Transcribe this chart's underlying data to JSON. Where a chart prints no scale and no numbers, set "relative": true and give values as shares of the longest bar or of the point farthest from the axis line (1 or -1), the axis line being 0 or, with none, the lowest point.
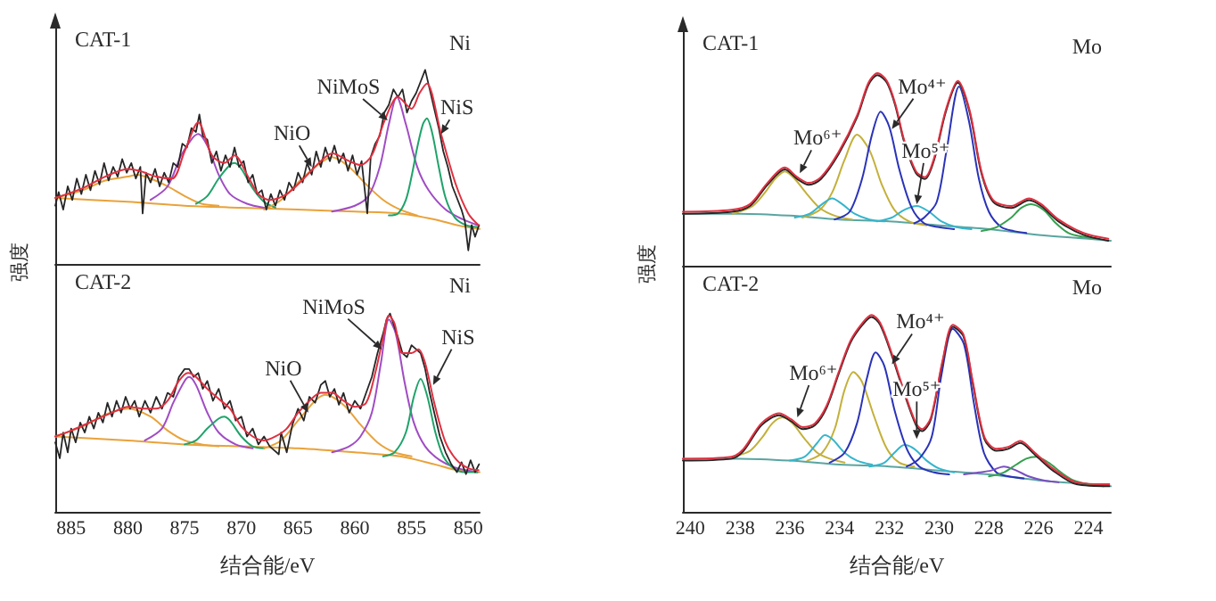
{
  "chart_data": [
    {
      "type": "line",
      "title": "CAT-1",
      "subtitle": "Ni",
      "relative": true,
      "tick_labels": false,
      "xlim": [
        886.4,
        849
      ],
      "annotations": [
        {
          "text": "NiO",
          "x": 863.8,
          "y": 0.5
        },
        {
          "text": "NiMoS",
          "x": 857.1,
          "y": 0.74
        },
        {
          "text": "NiS",
          "x": 852.4,
          "y": 0.67
        }
      ],
      "series": [
        {
          "color": "#e9a23b",
          "x": [
            886.4,
            880,
            875,
            870,
            865,
            860,
            856,
            853,
            851,
            849
          ],
          "values": [
            0.34,
            0.32,
            0.3,
            0.29,
            0.28,
            0.27,
            0.26,
            0.23,
            0.2,
            0.18
          ]
        },
        {
          "color": "#e9a23b",
          "x": [
            886.4,
            884,
            882,
            880,
            879.2,
            878,
            876.5,
            875,
            873.5,
            872
          ],
          "values": [
            0.34,
            0.38,
            0.43,
            0.45,
            0.46,
            0.44,
            0.4,
            0.35,
            0.31,
            0.3
          ]
        },
        {
          "color": "#a04cc4",
          "x": [
            878,
            876.5,
            875.3,
            874.3,
            873.8,
            873,
            872,
            871,
            869.5,
            868
          ],
          "values": [
            0.33,
            0.4,
            0.56,
            0.65,
            0.67,
            0.61,
            0.46,
            0.36,
            0.31,
            0.29
          ]
        },
        {
          "color": "#1fa36a",
          "x": [
            874,
            873,
            872,
            871,
            870.6,
            870,
            869,
            868,
            867
          ],
          "values": [
            0.31,
            0.35,
            0.44,
            0.51,
            0.52,
            0.49,
            0.39,
            0.32,
            0.29
          ]
        },
        {
          "color": "#e9a23b",
          "x": [
            868,
            866.5,
            865,
            863.5,
            862,
            860.5,
            859,
            857.5,
            856,
            854.5
          ],
          "values": [
            0.28,
            0.33,
            0.42,
            0.5,
            0.55,
            0.5,
            0.41,
            0.33,
            0.28,
            0.25
          ]
        },
        {
          "color": "#a04cc4",
          "x": [
            862,
            860,
            858.8,
            857.8,
            857,
            856.3,
            855.5,
            854.5,
            853.5,
            852,
            850.5,
            849.2
          ],
          "values": [
            0.27,
            0.3,
            0.35,
            0.5,
            0.72,
            0.86,
            0.72,
            0.5,
            0.38,
            0.28,
            0.23,
            0.2
          ]
        },
        {
          "color": "#1fa36a",
          "x": [
            857,
            856.2,
            855.5,
            855,
            854.5,
            854,
            853.65,
            853.2,
            852.6,
            852,
            851.2,
            850.2,
            849.2
          ],
          "values": [
            0.25,
            0.26,
            0.33,
            0.45,
            0.6,
            0.72,
            0.75,
            0.68,
            0.5,
            0.34,
            0.24,
            0.2,
            0.19
          ]
        },
        {
          "color": "#262626",
          "x": [
            886.4,
            886.1,
            885.7,
            885.3,
            884.9,
            884.5,
            884.1,
            883.7,
            883.3,
            882.9,
            882.5,
            882.1,
            881.7,
            881.3,
            880.9,
            880.5,
            880.1,
            879.7,
            879.3,
            878.9,
            878.7,
            878.4,
            878,
            877.6,
            877.2,
            876.8,
            876.4,
            876,
            875.6,
            875.2,
            874.8,
            874.4,
            874,
            873.7,
            873.4,
            873,
            872.6,
            872.2,
            871.8,
            871.4,
            871,
            870.6,
            870.2,
            869.8,
            869.4,
            869,
            868.6,
            868.2,
            867.8,
            867.4,
            867,
            866.6,
            866.2,
            865.8,
            865.4,
            865,
            864.6,
            864.2,
            863.8,
            863.4,
            863,
            862.6,
            862.2,
            861.8,
            861.4,
            861,
            860.6,
            860.2,
            859.8,
            859.4,
            858.9,
            858.6,
            858.2,
            857.8,
            857.4,
            857,
            856.6,
            856.2,
            855.8,
            855.4,
            855,
            854.6,
            854.2,
            853.8,
            853.4,
            853,
            852.6,
            852.2,
            851.8,
            851.4,
            851,
            850.6,
            850.3,
            850,
            849.7,
            849.4,
            849.05
          ],
          "values": [
            0.3,
            0.37,
            0.28,
            0.4,
            0.33,
            0.44,
            0.36,
            0.46,
            0.38,
            0.48,
            0.41,
            0.52,
            0.43,
            0.5,
            0.45,
            0.54,
            0.47,
            0.52,
            0.44,
            0.5,
            0.26,
            0.47,
            0.42,
            0.49,
            0.4,
            0.47,
            0.42,
            0.52,
            0.5,
            0.62,
            0.6,
            0.7,
            0.68,
            0.77,
            0.66,
            0.64,
            0.52,
            0.58,
            0.48,
            0.56,
            0.5,
            0.6,
            0.5,
            0.53,
            0.42,
            0.46,
            0.36,
            0.38,
            0.28,
            0.36,
            0.3,
            0.38,
            0.33,
            0.42,
            0.38,
            0.47,
            0.42,
            0.52,
            0.46,
            0.58,
            0.5,
            0.6,
            0.53,
            0.61,
            0.52,
            0.57,
            0.48,
            0.56,
            0.46,
            0.53,
            0.26,
            0.55,
            0.62,
            0.66,
            0.78,
            0.82,
            0.9,
            0.86,
            0.9,
            0.78,
            0.84,
            0.88,
            0.94,
            1.0,
            0.9,
            0.8,
            0.7,
            0.58,
            0.5,
            0.4,
            0.34,
            0.28,
            0.22,
            0.07,
            0.2,
            0.14,
            0.2
          ]
        },
        {
          "color": "#e03040",
          "x": [
            886.4,
            884,
            882,
            880,
            879,
            877.5,
            876.1,
            875,
            873.8,
            872.6,
            871.5,
            870.6,
            869.5,
            868.5,
            867.5,
            866,
            864.5,
            863,
            862,
            860.5,
            859.5,
            858.5,
            857.3,
            856.2,
            855,
            854.3,
            853.65,
            852.4,
            851.1,
            850,
            849.1
          ],
          "values": [
            0.34,
            0.39,
            0.45,
            0.49,
            0.48,
            0.45,
            0.44,
            0.58,
            0.73,
            0.56,
            0.52,
            0.56,
            0.46,
            0.36,
            0.33,
            0.36,
            0.44,
            0.53,
            0.57,
            0.53,
            0.51,
            0.56,
            0.75,
            0.86,
            0.8,
            0.88,
            0.93,
            0.67,
            0.41,
            0.26,
            0.2
          ]
        }
      ]
    },
    {
      "type": "line",
      "title": "CAT-2",
      "subtitle": "Ni",
      "xlabel": "结合能/eV",
      "ylabel": "强度",
      "relative": true,
      "tick_labels": "x",
      "xlim": [
        886.4,
        849
      ],
      "xticks": [
        885,
        880,
        875,
        870,
        865,
        860,
        855,
        850
      ],
      "annotations": [
        {
          "text": "NiO",
          "x": 864.1,
          "y": 0.5
        },
        {
          "text": "NiMoS",
          "x": 857.6,
          "y": 0.82
        },
        {
          "text": "NiS",
          "x": 853.1,
          "y": 0.64
        }
      ],
      "series": [
        {
          "color": "#e9a23b",
          "x": [
            886.4,
            880,
            875,
            870,
            865,
            860,
            856,
            853,
            851,
            849
          ],
          "values": [
            0.38,
            0.36,
            0.34,
            0.33,
            0.32,
            0.3,
            0.28,
            0.24,
            0.21,
            0.2
          ]
        },
        {
          "color": "#e9a23b",
          "x": [
            886.4,
            884,
            882,
            880,
            878,
            876.5,
            875,
            873.5,
            872
          ],
          "values": [
            0.38,
            0.43,
            0.49,
            0.52,
            0.48,
            0.41,
            0.36,
            0.34,
            0.33
          ]
        },
        {
          "color": "#a04cc4",
          "x": [
            878.5,
            877,
            876,
            875,
            874.6,
            874,
            873,
            872,
            870.5,
            869
          ],
          "values": [
            0.36,
            0.42,
            0.55,
            0.66,
            0.68,
            0.64,
            0.5,
            0.4,
            0.34,
            0.32
          ]
        },
        {
          "color": "#1fa36a",
          "x": [
            875,
            874,
            873,
            872,
            871.5,
            871,
            870,
            869,
            868
          ],
          "values": [
            0.34,
            0.36,
            0.42,
            0.47,
            0.48,
            0.46,
            0.38,
            0.33,
            0.32
          ]
        },
        {
          "color": "#e9a23b",
          "x": [
            868,
            866.5,
            865,
            863.5,
            862.6,
            861,
            859.5,
            858,
            856.5,
            855
          ],
          "values": [
            0.32,
            0.36,
            0.46,
            0.56,
            0.59,
            0.54,
            0.44,
            0.35,
            0.3,
            0.28
          ]
        },
        {
          "color": "#a04cc4",
          "x": [
            862,
            860.5,
            859.5,
            858.5,
            857.7,
            857,
            856.4,
            855.6,
            854.8,
            853.8,
            852.5,
            851,
            849.2
          ],
          "values": [
            0.3,
            0.33,
            0.38,
            0.5,
            0.75,
            0.97,
            0.9,
            0.65,
            0.45,
            0.33,
            0.26,
            0.22,
            0.2
          ]
        },
        {
          "color": "#1fa36a",
          "x": [
            857.5,
            856.5,
            855.5,
            854.8,
            854.2,
            853.6,
            852.9,
            852.2,
            851.3,
            850.3,
            849.2
          ],
          "values": [
            0.28,
            0.3,
            0.4,
            0.58,
            0.67,
            0.58,
            0.4,
            0.28,
            0.22,
            0.2,
            0.2
          ]
        },
        {
          "color": "#262626",
          "x": [
            886.4,
            886,
            885.7,
            885.3,
            885,
            884.6,
            884.2,
            883.8,
            883.4,
            883,
            882.6,
            882.2,
            881.8,
            881.4,
            881,
            880.6,
            880.2,
            879.8,
            879.4,
            879,
            878.5,
            878,
            877.5,
            877,
            876.5,
            876,
            875.5,
            875,
            874.6,
            874.2,
            873.8,
            873.4,
            873,
            872.5,
            872,
            871.5,
            871,
            870.5,
            870,
            869.5,
            869,
            868.5,
            868,
            867.5,
            866.7,
            866.5,
            866,
            865.5,
            865,
            864.5,
            864,
            863.5,
            863,
            862.6,
            862.2,
            861.8,
            861.4,
            861,
            860.5,
            860,
            859.5,
            859,
            858.5,
            858,
            857.5,
            857.2,
            856.9,
            856.6,
            856.2,
            855.8,
            855.4,
            855,
            854.6,
            854.2,
            853.8,
            853.4,
            853,
            852.5,
            852,
            851.5,
            851,
            850.6,
            850.2,
            849.8,
            849.4,
            849.05
          ],
          "values": [
            0.35,
            0.27,
            0.4,
            0.3,
            0.42,
            0.35,
            0.45,
            0.4,
            0.48,
            0.42,
            0.5,
            0.45,
            0.55,
            0.48,
            0.56,
            0.5,
            0.58,
            0.52,
            0.56,
            0.48,
            0.56,
            0.5,
            0.58,
            0.52,
            0.6,
            0.58,
            0.68,
            0.72,
            0.72,
            0.68,
            0.7,
            0.62,
            0.66,
            0.56,
            0.62,
            0.52,
            0.56,
            0.46,
            0.48,
            0.38,
            0.42,
            0.34,
            0.38,
            0.33,
            0.29,
            0.4,
            0.3,
            0.44,
            0.52,
            0.46,
            0.58,
            0.55,
            0.64,
            0.66,
            0.58,
            0.62,
            0.54,
            0.6,
            0.5,
            0.56,
            0.52,
            0.6,
            0.68,
            0.8,
            0.9,
            0.97,
            1.0,
            0.95,
            0.88,
            0.8,
            0.78,
            0.84,
            0.82,
            0.8,
            0.72,
            0.6,
            0.5,
            0.38,
            0.3,
            0.24,
            0.2,
            0.25,
            0.19,
            0.26,
            0.2,
            0.24
          ]
        },
        {
          "color": "#e03040",
          "x": [
            886.4,
            885,
            883,
            881,
            880,
            878.5,
            877.5,
            876.5,
            875.5,
            874.7,
            874,
            873,
            872,
            871,
            870,
            869,
            868,
            867,
            866,
            865,
            864,
            863,
            862,
            861,
            860,
            859,
            858.2,
            857.5,
            857,
            856.5,
            855.8,
            855,
            854.4,
            853.8,
            853,
            852,
            851,
            850,
            849.1
          ],
          "values": [
            0.38,
            0.41,
            0.46,
            0.51,
            0.53,
            0.52,
            0.52,
            0.56,
            0.66,
            0.7,
            0.68,
            0.62,
            0.57,
            0.52,
            0.43,
            0.38,
            0.36,
            0.38,
            0.42,
            0.5,
            0.56,
            0.6,
            0.6,
            0.56,
            0.53,
            0.55,
            0.7,
            0.88,
            0.99,
            0.95,
            0.8,
            0.8,
            0.82,
            0.75,
            0.55,
            0.35,
            0.26,
            0.22,
            0.21
          ]
        }
      ]
    },
    {
      "type": "line",
      "title": "CAT-1",
      "subtitle": "Mo",
      "relative": true,
      "tick_labels": false,
      "xlim": [
        240.3,
        223.1
      ],
      "annotations": [
        {
          "text": "Mo⁶⁺",
          "x": 235.6,
          "y": 0.48
        },
        {
          "text": "Mo⁴⁺",
          "x": 231.9,
          "y": 0.71
        },
        {
          "text": "Mo⁵⁺",
          "x": 230.9,
          "y": 0.32
        }
      ],
      "series": [
        {
          "color": "#5aa5a0",
          "x": [
            240.3,
            238,
            236,
            234,
            232,
            230,
            228,
            226,
            224,
            223.1
          ],
          "values": [
            0.27,
            0.27,
            0.26,
            0.24,
            0.23,
            0.21,
            0.19,
            0.16,
            0.14,
            0.13
          ]
        },
        {
          "color": "#c4b03a",
          "x": [
            238.3,
            237.5,
            237,
            236.6,
            236.2,
            235.8,
            235.3,
            234.8,
            234.2,
            233.5
          ],
          "values": [
            0.27,
            0.31,
            0.38,
            0.45,
            0.49,
            0.45,
            0.37,
            0.3,
            0.26,
            0.24
          ]
        },
        {
          "color": "#c4b03a",
          "x": [
            235.5,
            234.8,
            234.3,
            233.8,
            233.3,
            232.8,
            232.3,
            231.8,
            231.2,
            230.5
          ],
          "values": [
            0.25,
            0.29,
            0.38,
            0.55,
            0.68,
            0.6,
            0.42,
            0.29,
            0.23,
            0.21
          ]
        },
        {
          "color": "#35b5cc",
          "x": [
            235.8,
            235.2,
            234.7,
            234.3,
            233.9,
            233.4,
            232.8,
            232.2
          ],
          "values": [
            0.25,
            0.27,
            0.32,
            0.35,
            0.32,
            0.27,
            0.24,
            0.23
          ]
        },
        {
          "color": "#35b5cc",
          "x": [
            232.5,
            231.9,
            231.4,
            230.9,
            230.4,
            229.9,
            229.3,
            228.7
          ],
          "values": [
            0.23,
            0.25,
            0.29,
            0.31,
            0.28,
            0.23,
            0.2,
            0.19
          ]
        },
        {
          "color": "#2a33b8",
          "x": [
            234.2,
            233.6,
            233.1,
            232.7,
            232.35,
            232,
            231.6,
            231.1,
            230.6,
            230,
            229.4
          ],
          "values": [
            0.24,
            0.28,
            0.45,
            0.68,
            0.8,
            0.72,
            0.5,
            0.3,
            0.22,
            0.2,
            0.19
          ]
        },
        {
          "color": "#2a33b8",
          "x": [
            231,
            230.6,
            230.1,
            229.7,
            229.2,
            228.8,
            228.4,
            228,
            227.5,
            227,
            226.5
          ],
          "values": [
            0.22,
            0.25,
            0.33,
            0.6,
            0.93,
            0.75,
            0.45,
            0.28,
            0.2,
            0.18,
            0.17
          ]
        },
        {
          "color": "#35a04f",
          "x": [
            228.3,
            227.7,
            227.1,
            226.7,
            226.3,
            225.8,
            225.3,
            224.8,
            224.2,
            223.6
          ],
          "values": [
            0.18,
            0.2,
            0.25,
            0.3,
            0.32,
            0.29,
            0.22,
            0.17,
            0.15,
            0.14
          ]
        },
        {
          "color": "#262626",
          "x": [
            240.3,
            238.34,
            237.6,
            236.9,
            236.2,
            235.7,
            235.24,
            234.75,
            234.04,
            233.3,
            232.84,
            232.48,
            232.1,
            231.76,
            231.4,
            230.93,
            230.57,
            230.2,
            229.73,
            229.25,
            228.78,
            228.3,
            227.82,
            227.1,
            226.38,
            225.9,
            225.2,
            224.2,
            223.2
          ],
          "values": [
            0.27,
            0.28,
            0.31,
            0.42,
            0.5,
            0.45,
            0.42,
            0.45,
            0.58,
            0.77,
            0.94,
            0.99,
            0.95,
            0.83,
            0.64,
            0.48,
            0.45,
            0.55,
            0.8,
            0.95,
            0.8,
            0.48,
            0.33,
            0.3,
            0.34,
            0.31,
            0.23,
            0.16,
            0.13
          ]
        },
        {
          "color": "#e03040",
          "x": [
            240.3,
            238.34,
            237.6,
            236.9,
            236.2,
            235.7,
            235.24,
            234.75,
            234.04,
            233.3,
            232.84,
            232.48,
            232.1,
            231.76,
            231.4,
            230.93,
            230.57,
            230.2,
            229.73,
            229.25,
            228.78,
            228.3,
            227.82,
            227.1,
            226.38,
            225.9,
            225.2,
            224.2,
            223.2
          ],
          "values": [
            0.28,
            0.29,
            0.32,
            0.43,
            0.51,
            0.46,
            0.43,
            0.46,
            0.59,
            0.78,
            0.95,
            1.0,
            0.96,
            0.84,
            0.65,
            0.49,
            0.46,
            0.56,
            0.81,
            0.96,
            0.81,
            0.49,
            0.34,
            0.31,
            0.35,
            0.32,
            0.24,
            0.17,
            0.14
          ]
        }
      ]
    },
    {
      "type": "line",
      "title": "CAT-2",
      "subtitle": "Mo",
      "xlabel": "结合能/eV",
      "ylabel": "强度",
      "relative": true,
      "tick_labels": "x",
      "xlim": [
        240.3,
        223.1
      ],
      "xticks": [
        240,
        238,
        236,
        234,
        232,
        230,
        228,
        226,
        224
      ],
      "annotations": [
        {
          "text": "Mo⁶⁺",
          "x": 235.7,
          "y": 0.48
        },
        {
          "text": "Mo⁴⁺",
          "x": 231.9,
          "y": 0.75
        },
        {
          "text": "Mo⁵⁺",
          "x": 230.9,
          "y": 0.37
        }
      ],
      "series": [
        {
          "color": "#5aa5a0",
          "x": [
            240.3,
            238,
            236,
            234,
            232,
            230,
            228,
            226,
            224,
            223.1
          ],
          "values": [
            0.27,
            0.27,
            0.26,
            0.24,
            0.23,
            0.21,
            0.19,
            0.16,
            0.14,
            0.13
          ]
        },
        {
          "color": "#c4b03a",
          "x": [
            238.3,
            237.6,
            237.1,
            236.7,
            236.3,
            235.9,
            235.4,
            234.9,
            234.4,
            233.8
          ],
          "values": [
            0.28,
            0.31,
            0.38,
            0.45,
            0.48,
            0.45,
            0.37,
            0.3,
            0.27,
            0.25
          ]
        },
        {
          "color": "#c4b03a",
          "x": [
            235.3,
            234.7,
            234.2,
            233.8,
            233.45,
            233.1,
            232.6,
            232.1,
            231.6,
            231
          ],
          "values": [
            0.26,
            0.3,
            0.42,
            0.62,
            0.71,
            0.66,
            0.48,
            0.32,
            0.25,
            0.23
          ]
        },
        {
          "color": "#35b5cc",
          "x": [
            236,
            235.4,
            234.9,
            234.6,
            234.3,
            233.8,
            233.3,
            232.7
          ],
          "values": [
            0.26,
            0.28,
            0.35,
            0.39,
            0.37,
            0.3,
            0.26,
            0.24
          ]
        },
        {
          "color": "#35b5cc",
          "x": [
            232.8,
            232.2,
            231.8,
            231.4,
            231,
            230.5,
            230,
            229.4
          ],
          "values": [
            0.23,
            0.25,
            0.3,
            0.34,
            0.32,
            0.26,
            0.22,
            0.2
          ]
        },
        {
          "color": "#2a33b8",
          "x": [
            234.4,
            233.8,
            233.3,
            232.9,
            232.55,
            232.2,
            231.8,
            231.3,
            230.8,
            230.2,
            229.6
          ],
          "values": [
            0.25,
            0.3,
            0.45,
            0.68,
            0.81,
            0.74,
            0.52,
            0.32,
            0.23,
            0.2,
            0.19
          ]
        },
        {
          "color": "#2a33b8",
          "x": [
            231.3,
            230.8,
            230.3,
            229.9,
            229.45,
            229,
            228.6,
            228.2,
            227.7,
            227.2,
            226.6
          ],
          "values": [
            0.23,
            0.27,
            0.38,
            0.7,
            0.93,
            0.85,
            0.55,
            0.3,
            0.2,
            0.18,
            0.17
          ]
        },
        {
          "color": "#7a4fc0",
          "x": [
            229,
            228.4,
            227.9,
            227.4,
            226.9,
            226.4,
            225.8,
            225.2
          ],
          "values": [
            0.19,
            0.2,
            0.21,
            0.23,
            0.21,
            0.18,
            0.16,
            0.15
          ]
        },
        {
          "color": "#35a04f",
          "x": [
            228,
            227.4,
            226.9,
            226.5,
            226.1,
            225.6,
            225.1,
            224.6,
            224,
            223.4
          ],
          "values": [
            0.18,
            0.2,
            0.24,
            0.27,
            0.28,
            0.25,
            0.2,
            0.16,
            0.14,
            0.13
          ]
        },
        {
          "color": "#262626",
          "x": [
            240.3,
            238.34,
            237.86,
            237.14,
            236.43,
            235.95,
            235.47,
            234.99,
            234.52,
            234.04,
            233.56,
            233.08,
            232.72,
            232.37,
            231.89,
            231.4,
            230.93,
            230.69,
            230.33,
            229.86,
            229.45,
            229.02,
            228.66,
            228.18,
            227.7,
            227.22,
            226.74,
            226.15,
            225.43,
            224.48,
            223.16
          ],
          "values": [
            0.26,
            0.27,
            0.31,
            0.44,
            0.49,
            0.46,
            0.42,
            0.44,
            0.53,
            0.7,
            0.86,
            0.95,
            0.99,
            0.95,
            0.79,
            0.6,
            0.44,
            0.41,
            0.47,
            0.76,
            0.94,
            0.89,
            0.66,
            0.37,
            0.31,
            0.32,
            0.35,
            0.29,
            0.21,
            0.14,
            0.13
          ]
        },
        {
          "color": "#e03040",
          "x": [
            240.3,
            238.34,
            237.86,
            237.14,
            236.43,
            235.95,
            235.47,
            234.99,
            234.52,
            234.04,
            233.56,
            233.08,
            232.72,
            232.37,
            231.89,
            231.4,
            230.93,
            230.69,
            230.33,
            229.86,
            229.45,
            229.02,
            228.66,
            228.18,
            227.7,
            227.22,
            226.74,
            226.15,
            225.43,
            224.48,
            223.16
          ],
          "values": [
            0.27,
            0.28,
            0.32,
            0.45,
            0.5,
            0.47,
            0.43,
            0.45,
            0.54,
            0.71,
            0.87,
            0.96,
            1.0,
            0.96,
            0.8,
            0.61,
            0.45,
            0.42,
            0.48,
            0.77,
            0.95,
            0.9,
            0.67,
            0.38,
            0.32,
            0.33,
            0.36,
            0.3,
            0.22,
            0.15,
            0.14
          ]
        }
      ]
    }
  ]
}
